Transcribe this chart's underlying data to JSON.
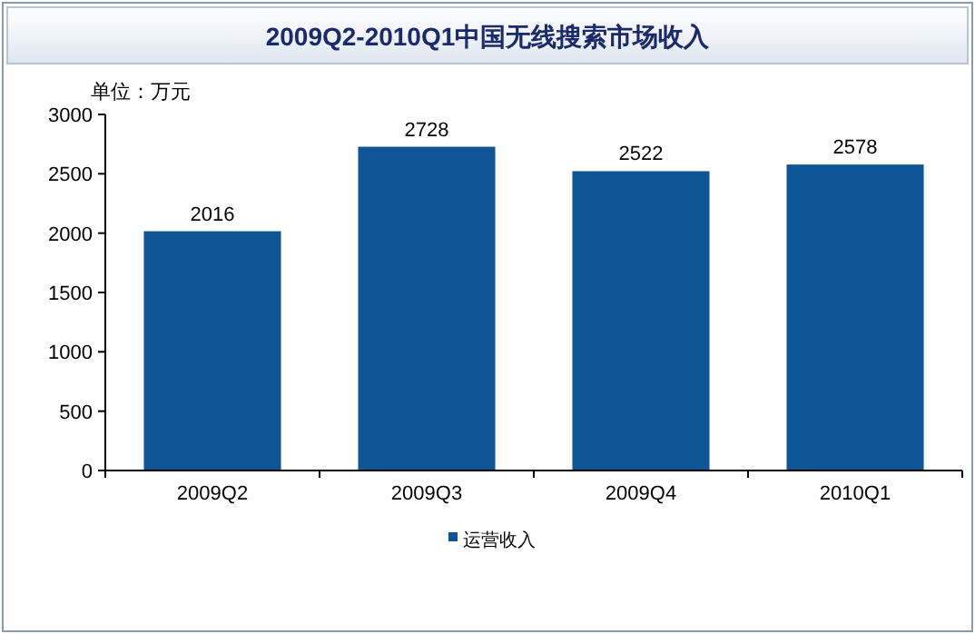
{
  "chart_data": {
    "type": "bar",
    "title": "2009Q2-2010Q1中国无线搜索市场收入",
    "ylabel": "单位：万元",
    "categories": [
      "2009Q2",
      "2009Q3",
      "2009Q4",
      "2010Q1"
    ],
    "series": [
      {
        "name": "运营收入",
        "color": "#0e5596",
        "values": [
          2016,
          2728,
          2522,
          2578
        ]
      }
    ],
    "ylim": [
      0,
      3000
    ],
    "yticks": [
      0,
      500,
      1000,
      1500,
      2000,
      2500,
      3000
    ],
    "data_labels": true,
    "legend": "bottom",
    "grid": false
  }
}
